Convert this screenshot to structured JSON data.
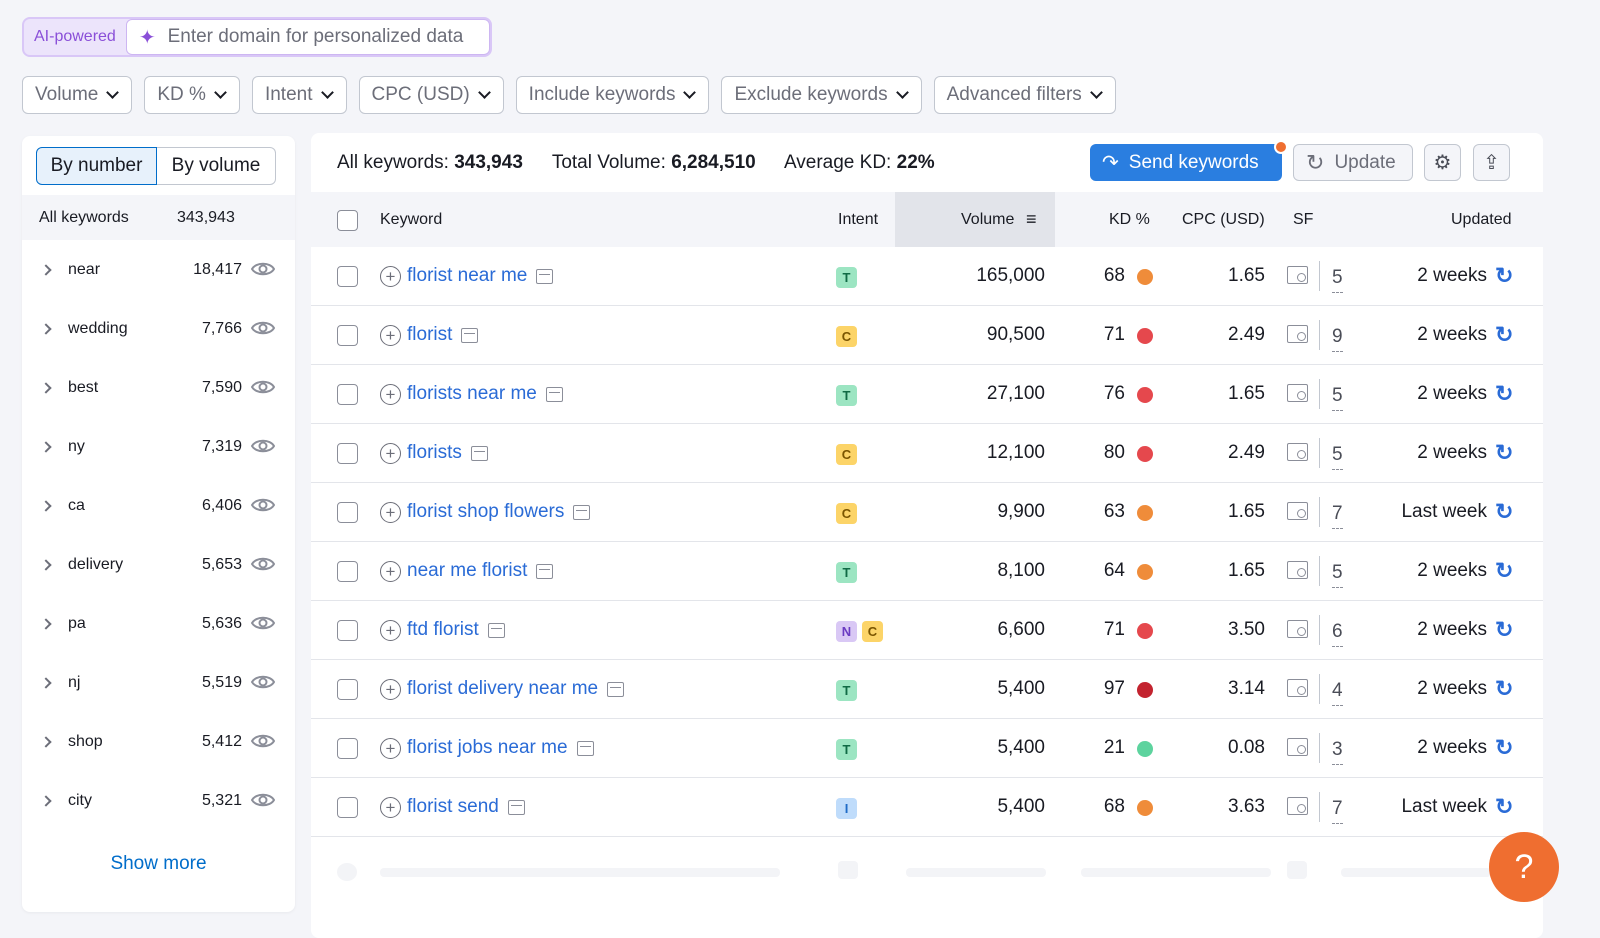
{
  "ai": {
    "badge": "AI-powered",
    "placeholder": "Enter domain for personalized data",
    "icon": "sparkle-icon"
  },
  "filters": [
    "Volume",
    "KD %",
    "Intent",
    "CPC (USD)",
    "Include keywords",
    "Exclude keywords",
    "Advanced filters"
  ],
  "sidebar": {
    "toggle": {
      "by_number": "By number",
      "by_volume": "By volume"
    },
    "all_label": "All keywords",
    "all_count": "343,943",
    "groups": [
      {
        "name": "near",
        "count": "18,417"
      },
      {
        "name": "wedding",
        "count": "7,766"
      },
      {
        "name": "best",
        "count": "7,590"
      },
      {
        "name": "ny",
        "count": "7,319"
      },
      {
        "name": "ca",
        "count": "6,406"
      },
      {
        "name": "delivery",
        "count": "5,653"
      },
      {
        "name": "pa",
        "count": "5,636"
      },
      {
        "name": "nj",
        "count": "5,519"
      },
      {
        "name": "shop",
        "count": "5,412"
      },
      {
        "name": "city",
        "count": "5,321"
      }
    ],
    "show_more": "Show more"
  },
  "summary": {
    "all_label": "All keywords:",
    "all_value": "343,943",
    "vol_label": "Total Volume:",
    "vol_value": "6,284,510",
    "kd_label": "Average KD:",
    "kd_value": "22%"
  },
  "actions": {
    "send": "Send keywords",
    "update": "Update"
  },
  "columns": {
    "keyword": "Keyword",
    "intent": "Intent",
    "volume": "Volume",
    "kd": "KD %",
    "cpc": "CPC (USD)",
    "sf": "SF",
    "updated": "Updated"
  },
  "colors": {
    "accent": "#2a7ee0",
    "kd_orange": "#ef8c3a",
    "kd_red": "#e5484d",
    "kd_darkred": "#c3232f",
    "kd_green": "#5dd39e",
    "help": "#ef6e30"
  },
  "rows": [
    {
      "keyword": "florist near me",
      "intent": [
        "T"
      ],
      "volume": "165,000",
      "kd": "68",
      "kd_color": "#ef8c3a",
      "cpc": "1.65",
      "sf": "5",
      "updated": "2 weeks"
    },
    {
      "keyword": "florist",
      "intent": [
        "C"
      ],
      "volume": "90,500",
      "kd": "71",
      "kd_color": "#e5484d",
      "cpc": "2.49",
      "sf": "9",
      "updated": "2 weeks"
    },
    {
      "keyword": "florists near me",
      "intent": [
        "T"
      ],
      "volume": "27,100",
      "kd": "76",
      "kd_color": "#e5484d",
      "cpc": "1.65",
      "sf": "5",
      "updated": "2 weeks"
    },
    {
      "keyword": "florists",
      "intent": [
        "C"
      ],
      "volume": "12,100",
      "kd": "80",
      "kd_color": "#e5484d",
      "cpc": "2.49",
      "sf": "5",
      "updated": "2 weeks"
    },
    {
      "keyword": "florist shop flowers",
      "intent": [
        "C"
      ],
      "volume": "9,900",
      "kd": "63",
      "kd_color": "#ef8c3a",
      "cpc": "1.65",
      "sf": "7",
      "updated": "Last week"
    },
    {
      "keyword": "near me florist",
      "intent": [
        "T"
      ],
      "volume": "8,100",
      "kd": "64",
      "kd_color": "#ef8c3a",
      "cpc": "1.65",
      "sf": "5",
      "updated": "2 weeks"
    },
    {
      "keyword": "ftd florist",
      "intent": [
        "N",
        "C"
      ],
      "volume": "6,600",
      "kd": "71",
      "kd_color": "#e5484d",
      "cpc": "3.50",
      "sf": "6",
      "updated": "2 weeks"
    },
    {
      "keyword": "florist delivery near me",
      "intent": [
        "T"
      ],
      "volume": "5,400",
      "kd": "97",
      "kd_color": "#c3232f",
      "cpc": "3.14",
      "sf": "4",
      "updated": "2 weeks"
    },
    {
      "keyword": "florist jobs near me",
      "intent": [
        "T"
      ],
      "volume": "5,400",
      "kd": "21",
      "kd_color": "#5dd39e",
      "cpc": "0.08",
      "sf": "3",
      "updated": "2 weeks"
    },
    {
      "keyword": "florist send",
      "intent": [
        "I"
      ],
      "volume": "5,400",
      "kd": "68",
      "kd_color": "#ef8c3a",
      "cpc": "3.63",
      "sf": "7",
      "updated": "Last week"
    }
  ],
  "help_label": "?"
}
